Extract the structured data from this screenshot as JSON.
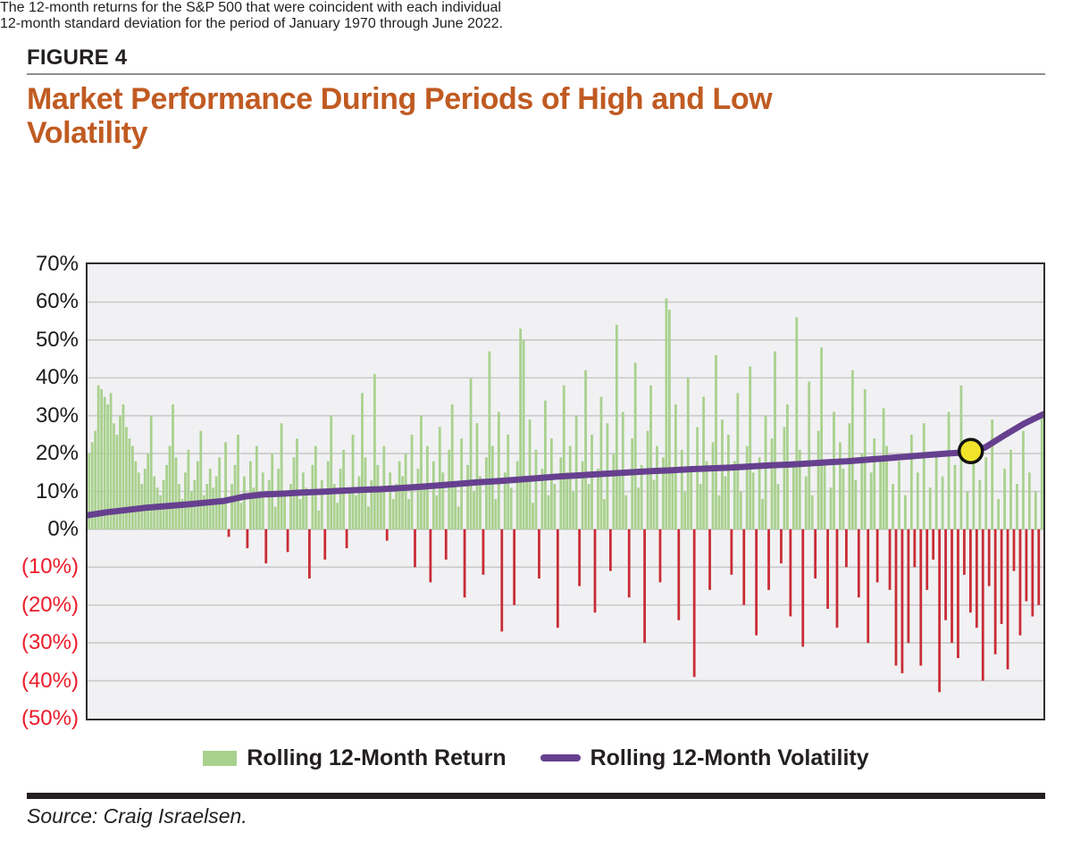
{
  "header": {
    "figure_label": "FIGURE 4",
    "title_lines": [
      "Market Performance During Periods of High and Low",
      "Volatility"
    ],
    "subtitle_lines": [
      "The 12-month returns for the S&P 500 that were coincident with each individual",
      "12-month standard deviation for the period of January 1970 through June 2022."
    ]
  },
  "footer": {
    "source": "Source: Craig Israelsen."
  },
  "theme": {
    "title_color": "#c05b22",
    "text_color": "#231f20",
    "axis_label_color": "#1a1a1a",
    "negative_label_color": "#ec1c2a",
    "plot_bg": "#f1f1f3",
    "grid_color": "#c9c9c9",
    "plot_border": "#2d2d2d",
    "bar_positive": "#a9d18e",
    "bar_negative": "#c92c35",
    "line_color": "#66408f",
    "marker_fill": "#f0e32a",
    "marker_stroke": "#111111"
  },
  "chart_data": {
    "type": "bar",
    "title": "Market Performance During Periods of High and Low Volatility",
    "xlabel": "",
    "ylabel": "",
    "ylim": [
      -50,
      70
    ],
    "grid": true,
    "legend_position": "bottom",
    "y_ticks": [
      {
        "value": 70,
        "label": "70%"
      },
      {
        "value": 60,
        "label": "60%"
      },
      {
        "value": 50,
        "label": "50%"
      },
      {
        "value": 40,
        "label": "40%"
      },
      {
        "value": 30,
        "label": "30%"
      },
      {
        "value": 20,
        "label": "20%"
      },
      {
        "value": 10,
        "label": "10%"
      },
      {
        "value": 0,
        "label": "0%"
      },
      {
        "value": -10,
        "label": "(10%)"
      },
      {
        "value": -20,
        "label": "(20%)"
      },
      {
        "value": -30,
        "label": "(30%)"
      },
      {
        "value": -40,
        "label": "(40%)"
      },
      {
        "value": -50,
        "label": "(50%)"
      }
    ],
    "series": [
      {
        "name": "Rolling 12-Month Return",
        "type": "bar",
        "values": [
          20,
          23,
          26,
          38,
          37,
          35,
          33,
          36,
          28,
          25,
          30,
          33,
          27,
          24,
          22,
          18,
          15,
          12,
          16,
          20,
          30,
          14,
          11,
          9,
          13,
          17,
          22,
          33,
          19,
          12,
          8,
          15,
          21,
          10,
          13,
          18,
          26,
          9,
          12,
          16,
          11,
          14,
          19,
          8,
          23,
          -2,
          12,
          17,
          25,
          7,
          14,
          -5,
          18,
          11,
          22,
          9,
          15,
          -9,
          13,
          20,
          6,
          16,
          28,
          10,
          -6,
          12,
          19,
          24,
          8,
          15,
          11,
          -13,
          17,
          22,
          5,
          13,
          -8,
          18,
          30,
          12,
          7,
          16,
          21,
          -5,
          11,
          25,
          9,
          14,
          36,
          19,
          6,
          13,
          41,
          17,
          10,
          22,
          -3,
          15,
          8,
          12,
          18,
          14,
          20,
          8,
          25,
          -10,
          16,
          30,
          11,
          22,
          -14,
          18,
          9,
          27,
          15,
          -8,
          21,
          33,
          12,
          6,
          24,
          -18,
          17,
          40,
          10,
          28,
          14,
          -12,
          19,
          47,
          22,
          8,
          31,
          -27,
          15,
          25,
          11,
          -20,
          18,
          53,
          50,
          13,
          29,
          7,
          21,
          -13,
          16,
          34,
          9,
          24,
          12,
          -26,
          19,
          38,
          15,
          22,
          10,
          30,
          -15,
          18,
          42,
          12,
          25,
          -22,
          16,
          35,
          8,
          28,
          -11,
          20,
          54,
          14,
          31,
          9,
          -18,
          24,
          44,
          11,
          17,
          -30,
          26,
          38,
          13,
          22,
          -14,
          19,
          61,
          58,
          15,
          33,
          -24,
          21,
          10,
          40,
          16,
          -39,
          27,
          12,
          35,
          18,
          -16,
          23,
          46,
          9,
          29,
          14,
          25,
          -12,
          18,
          36,
          10,
          -20,
          22,
          43,
          15,
          -28,
          19,
          8,
          30,
          -16,
          24,
          47,
          12,
          -9,
          27,
          33,
          -23,
          17,
          56,
          21,
          -31,
          14,
          39,
          9,
          -13,
          26,
          48,
          18,
          -21,
          11,
          31,
          -26,
          23,
          16,
          -10,
          28,
          42,
          13,
          -18,
          20,
          37,
          -30,
          15,
          24,
          -14,
          19,
          32,
          22,
          -16,
          12,
          -36,
          18,
          -38,
          9,
          -30,
          25,
          -10,
          15,
          -36,
          28,
          -16,
          11,
          -8,
          20,
          -43,
          14,
          -24,
          31,
          -30,
          17,
          -34,
          38,
          -12,
          10,
          -22,
          24,
          -26,
          13,
          -40,
          19,
          -15,
          29,
          -33,
          8,
          -25,
          16,
          -37,
          21,
          -11,
          12,
          -28,
          26,
          -19,
          15,
          -23,
          10,
          -20,
          30
        ]
      },
      {
        "name": "Rolling 12-Month Volatility",
        "type": "line",
        "values": [
          3.7,
          4.5,
          5.1,
          5.7,
          6.1,
          6.5,
          7.0,
          7.5,
          8.6,
          9.2,
          9.4,
          9.7,
          9.9,
          10.2,
          10.4,
          10.6,
          10.9,
          11.2,
          11.6,
          12.0,
          12.4,
          12.7,
          13.1,
          13.5,
          13.9,
          14.2,
          14.5,
          14.8,
          15.1,
          15.4,
          15.6,
          15.9,
          16.1,
          16.3,
          16.6,
          16.9,
          17.1,
          17.4,
          17.7,
          18.0,
          18.4,
          18.8,
          19.2,
          19.6,
          20.0,
          20.3,
          21.6,
          24.8,
          27.9,
          30.4
        ]
      }
    ],
    "highlight_marker": {
      "series": "Rolling 12-Month Volatility",
      "x_fraction": 0.924,
      "value": 20.5,
      "shape": "yellow-circle"
    }
  }
}
